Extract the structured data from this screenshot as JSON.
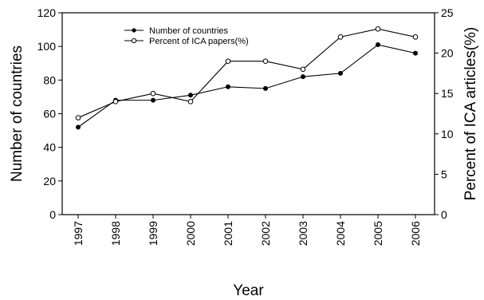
{
  "chart_data": {
    "type": "line",
    "title": "",
    "xlabel": "Year",
    "ylabel": "Number of countries",
    "y2label": "Percent of ICA articles(%)",
    "categories": [
      "1997",
      "1998",
      "1999",
      "2000",
      "2001",
      "2002",
      "2003",
      "2004",
      "2005",
      "2006"
    ],
    "ylim": [
      0,
      120
    ],
    "y2lim": [
      0,
      25
    ],
    "yticks": [
      "0",
      "20",
      "40",
      "60",
      "80",
      "100",
      "120"
    ],
    "y2ticks": [
      "0",
      "5",
      "10",
      "15",
      "20",
      "25"
    ],
    "grid": false,
    "legend_position": "top-center",
    "series": [
      {
        "name": "Number of countries",
        "axis": "left",
        "marker": "filled-circle",
        "values": [
          52,
          68,
          68,
          71,
          76,
          75,
          82,
          84,
          101,
          96
        ]
      },
      {
        "name": "Percent of ICA papers(%)",
        "axis": "right",
        "marker": "open-circle",
        "values": [
          12,
          14,
          15,
          14,
          19,
          19,
          18,
          22,
          23,
          22
        ]
      }
    ],
    "colors": {
      "line": "#000000",
      "marker_fill_open": "#ffffff"
    }
  }
}
